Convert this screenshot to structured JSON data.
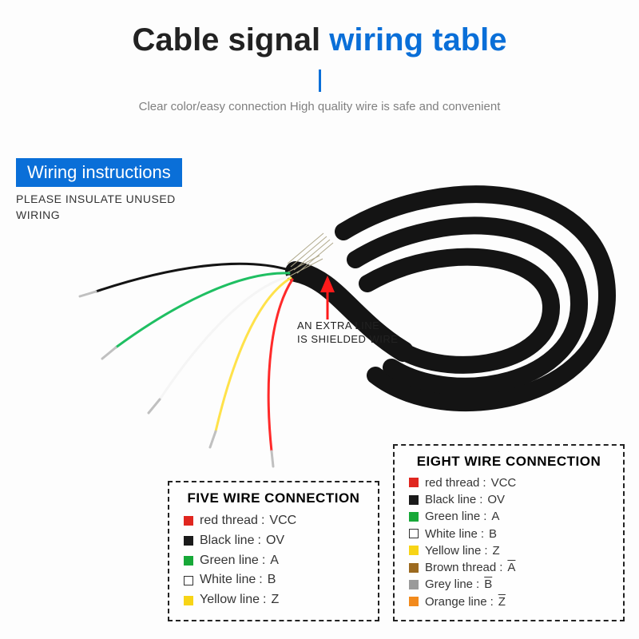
{
  "title": {
    "part1": "Cable signal ",
    "part2": "wiring table"
  },
  "subtitle": "Clear color/easy connection High quality wire is safe and convenient",
  "badge": "Wiring instructions",
  "badge_sub_l1": "PLEASE INSULATE UNUSED",
  "badge_sub_l2": "WIRING",
  "callout_l1": "AN EXTRA LINE",
  "callout_l2": "IS SHIELDED WIRE",
  "colors": {
    "accent": "#0a6fd8",
    "red": "#e0261f",
    "black": "#1a1a1a",
    "green": "#17a838",
    "white": "#ffffff",
    "yellow": "#f7d416",
    "brown": "#9c6a1f",
    "grey": "#9a9a9a",
    "orange": "#f28a1c",
    "arrow": "#ff1a1a",
    "cable_sheath": "#141414",
    "wire_green": "#1fbf62",
    "wire_yellow": "#ffe24a",
    "wire_red": "#ff2a2a"
  },
  "five": {
    "title": "FIVE WIRE CONNECTION",
    "rows": [
      {
        "swatch": "red",
        "outline": false,
        "label": "red thread",
        "val": "VCC"
      },
      {
        "swatch": "black",
        "outline": false,
        "label": "Black line",
        "val": "OV"
      },
      {
        "swatch": "green",
        "outline": false,
        "label": "Green line",
        "val": "A"
      },
      {
        "swatch": "white",
        "outline": true,
        "label": "White line",
        "val": "B"
      },
      {
        "swatch": "yellow",
        "outline": false,
        "label": "Yellow line",
        "val": "Z"
      }
    ]
  },
  "eight": {
    "title": "EIGHT WIRE CONNECTION",
    "rows": [
      {
        "swatch": "red",
        "outline": false,
        "label": "red thread",
        "val": "VCC"
      },
      {
        "swatch": "black",
        "outline": false,
        "label": "Black line",
        "val": "OV"
      },
      {
        "swatch": "green",
        "outline": false,
        "label": "Green line",
        "val": "A"
      },
      {
        "swatch": "white",
        "outline": true,
        "label": "White line",
        "val": "B"
      },
      {
        "swatch": "yellow",
        "outline": false,
        "label": "Yellow line",
        "val": "Z"
      },
      {
        "swatch": "brown",
        "outline": false,
        "label": "Brown thread",
        "val": "A",
        "overline": true
      },
      {
        "swatch": "grey",
        "outline": false,
        "label": "Grey line",
        "val": "B",
        "overline": true
      },
      {
        "swatch": "orange",
        "outline": false,
        "label": "Orange line",
        "val": "Z",
        "overline": true
      }
    ]
  }
}
